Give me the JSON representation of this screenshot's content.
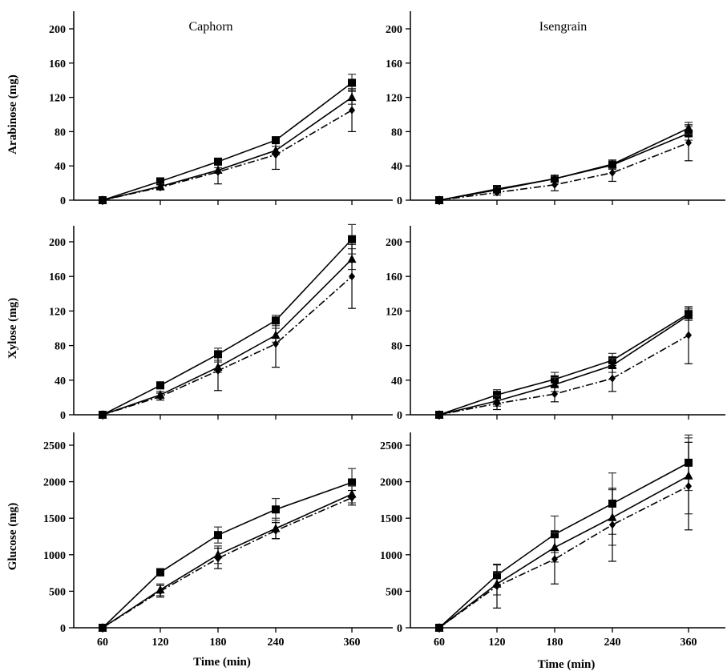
{
  "chart_data": [
    {
      "type": "line",
      "id": "p00",
      "title": "Caphorn",
      "ylabel": "Arabinose (mg)",
      "xlabel": "",
      "x": [
        60,
        120,
        180,
        240,
        360
      ],
      "ylim": [
        0,
        200
      ],
      "yticks": [
        0,
        40,
        80,
        120,
        160,
        200
      ],
      "series": [
        {
          "marker": "square",
          "line": "solid",
          "values": [
            0,
            22,
            45,
            70,
            137
          ],
          "err": [
            0,
            3,
            3,
            3,
            10
          ]
        },
        {
          "marker": "triangle",
          "line": "solid",
          "values": [
            0,
            16,
            35,
            58,
            120
          ],
          "err": [
            0,
            3,
            3,
            5,
            8
          ]
        },
        {
          "marker": "diamond",
          "line": "dashdot",
          "values": [
            0,
            15,
            33,
            53,
            105
          ],
          "err": [
            0,
            3,
            14,
            17,
            25
          ]
        }
      ]
    },
    {
      "type": "line",
      "id": "p01",
      "title": "Isengrain",
      "ylabel": "",
      "xlabel": "",
      "x": [
        60,
        120,
        180,
        240,
        360
      ],
      "ylim": [
        0,
        200
      ],
      "yticks": [
        0,
        40,
        80,
        120,
        160,
        200
      ],
      "series": [
        {
          "marker": "square",
          "line": "solid",
          "values": [
            0,
            13,
            25,
            41,
            78
          ],
          "err": [
            0,
            3,
            3,
            5,
            8
          ]
        },
        {
          "marker": "triangle",
          "line": "solid",
          "values": [
            0,
            12,
            25,
            42,
            84
          ],
          "err": [
            0,
            3,
            3,
            5,
            7
          ]
        },
        {
          "marker": "diamond",
          "line": "dashdot",
          "values": [
            0,
            9,
            18,
            32,
            67
          ],
          "err": [
            0,
            3,
            7,
            10,
            21
          ]
        }
      ]
    },
    {
      "type": "line",
      "id": "p10",
      "title": "",
      "ylabel": "Xylose (mg)",
      "xlabel": "",
      "x": [
        60,
        120,
        180,
        240,
        360
      ],
      "ylim": [
        0,
        220
      ],
      "yticks": [
        0,
        40,
        80,
        120,
        160,
        200
      ],
      "series": [
        {
          "marker": "square",
          "line": "solid",
          "values": [
            0,
            34,
            70,
            109,
            203
          ],
          "err": [
            0,
            4,
            7,
            6,
            17
          ]
        },
        {
          "marker": "triangle",
          "line": "solid",
          "values": [
            0,
            23,
            55,
            92,
            180
          ],
          "err": [
            0,
            4,
            6,
            8,
            12
          ]
        },
        {
          "marker": "diamond",
          "line": "dashdot",
          "values": [
            0,
            21,
            51,
            82,
            160
          ],
          "err": [
            0,
            4,
            23,
            27,
            37
          ]
        }
      ]
    },
    {
      "type": "line",
      "id": "p11",
      "title": "",
      "ylabel": "",
      "xlabel": "",
      "x": [
        60,
        120,
        180,
        240,
        360
      ],
      "ylim": [
        0,
        220
      ],
      "yticks": [
        0,
        40,
        80,
        120,
        160,
        200
      ],
      "series": [
        {
          "marker": "square",
          "line": "solid",
          "values": [
            0,
            23,
            41,
            63,
            117
          ],
          "err": [
            0,
            6,
            8,
            8,
            6
          ]
        },
        {
          "marker": "triangle",
          "line": "solid",
          "values": [
            0,
            16,
            35,
            57,
            115
          ],
          "err": [
            0,
            6,
            8,
            8,
            6
          ]
        },
        {
          "marker": "diamond",
          "line": "dashdot",
          "values": [
            0,
            13,
            24,
            42,
            92
          ],
          "err": [
            0,
            7,
            9,
            15,
            33
          ]
        }
      ]
    },
    {
      "type": "line",
      "id": "p20",
      "title": "",
      "ylabel": "Glucose (mg)",
      "xlabel": "Time (min)",
      "x": [
        60,
        120,
        180,
        240,
        360
      ],
      "ylim": [
        0,
        2500
      ],
      "yticks": [
        0,
        500,
        1000,
        1500,
        2000,
        2500
      ],
      "series": [
        {
          "marker": "square",
          "line": "solid",
          "values": [
            0,
            760,
            1270,
            1620,
            1990
          ],
          "err": [
            0,
            50,
            110,
            150,
            190
          ]
        },
        {
          "marker": "triangle",
          "line": "solid",
          "values": [
            0,
            520,
            1000,
            1360,
            1830
          ],
          "err": [
            0,
            80,
            120,
            140,
            120
          ]
        },
        {
          "marker": "diamond",
          "line": "dashdot",
          "values": [
            0,
            500,
            950,
            1330,
            1780
          ],
          "err": [
            0,
            80,
            140,
            110,
            100
          ]
        }
      ]
    },
    {
      "type": "line",
      "id": "p21",
      "title": "",
      "ylabel": "",
      "xlabel": "Time (min)",
      "x": [
        60,
        120,
        180,
        240,
        360
      ],
      "ylim": [
        0,
        2500
      ],
      "yticks": [
        0,
        500,
        1000,
        1500,
        2000,
        2500
      ],
      "series": [
        {
          "marker": "square",
          "line": "solid",
          "values": [
            0,
            720,
            1280,
            1700,
            2260
          ],
          "err": [
            0,
            140,
            250,
            420,
            380
          ]
        },
        {
          "marker": "triangle",
          "line": "solid",
          "values": [
            0,
            600,
            1100,
            1510,
            2080
          ],
          "err": [
            0,
            150,
            200,
            380,
            520
          ]
        },
        {
          "marker": "diamond",
          "line": "dashdot",
          "values": [
            0,
            570,
            940,
            1410,
            1940
          ],
          "err": [
            0,
            300,
            340,
            500,
            600
          ]
        }
      ]
    }
  ]
}
